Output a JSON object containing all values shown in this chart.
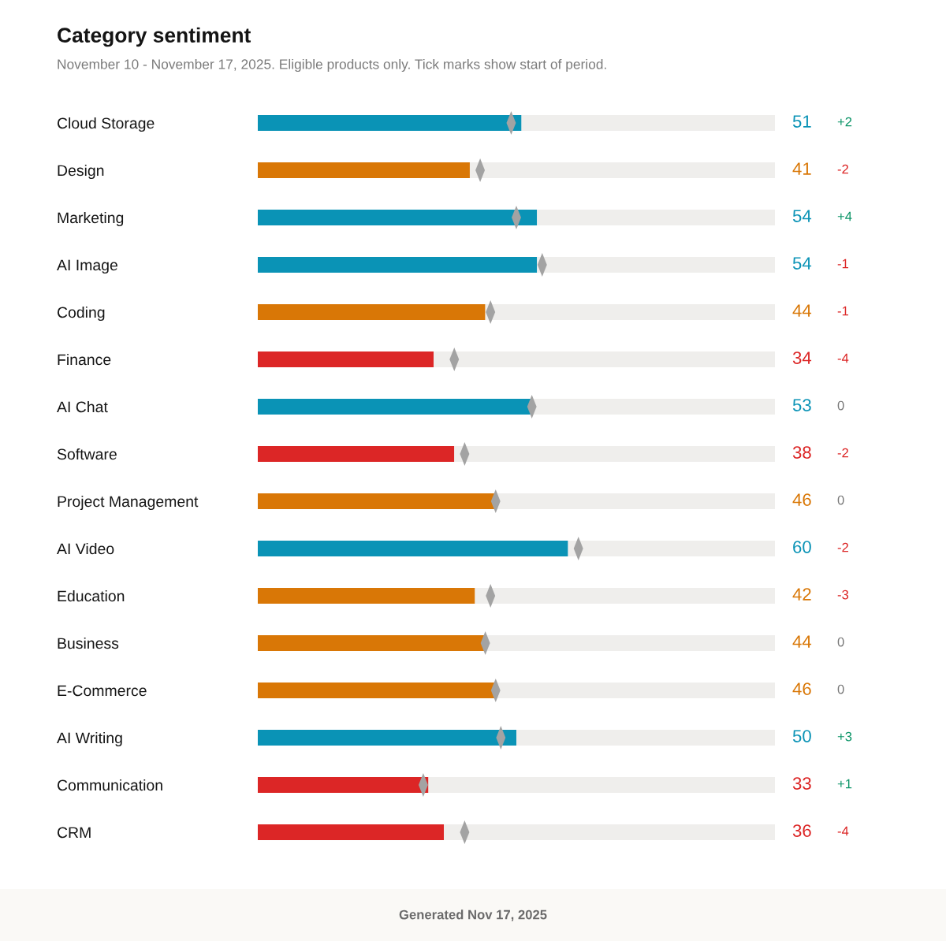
{
  "chart_data": {
    "type": "bar",
    "orientation": "horizontal",
    "stacked": true,
    "title": "Category sentiment",
    "subtitle": "November 10 - November 17, 2025. Eligible products only. Tick marks show start of period.",
    "categories": [
      "Cloud Storage",
      "Design",
      "Marketing",
      "AI Image",
      "Coding",
      "Finance",
      "AI Chat",
      "Software",
      "Project Management",
      "AI Video",
      "Education",
      "Business",
      "E-Commerce",
      "AI Writing",
      "Communication",
      "CRM"
    ],
    "xlim": [
      0,
      100
    ],
    "tick_labels": "y",
    "series": [
      {
        "values": [
          51,
          41,
          54,
          54,
          44,
          34,
          53,
          38,
          46,
          60,
          42,
          44,
          46,
          50,
          33,
          36
        ],
        "colors": [
          "#0a93b6",
          "#d97706",
          "#0a93b6",
          "#0a93b6",
          "#d97706",
          "#dc2626",
          "#0a93b6",
          "#dc2626",
          "#d97706",
          "#0a93b6",
          "#d97706",
          "#d97706",
          "#d97706",
          "#0a93b6",
          "#dc2626",
          "#dc2626"
        ],
        "value_labels": [
          "51",
          "41",
          "54",
          "54",
          "44",
          "34",
          "53",
          "38",
          "46",
          "60",
          "42",
          "44",
          "46",
          "50",
          "33",
          "36"
        ]
      },
      {
        "color": "#efeeec",
        "values": [
          49,
          59,
          46,
          46,
          56,
          66,
          47,
          62,
          54,
          40,
          58,
          56,
          54,
          50,
          67,
          64
        ]
      },
      {
        "type": "scatter",
        "color": "#a3a3a3",
        "marker": "diamond",
        "values": [
          49,
          43,
          50,
          55,
          45,
          38,
          53,
          40,
          46,
          62,
          45,
          44,
          46,
          47,
          32,
          40
        ]
      }
    ],
    "annotations": [
      "+2",
      "-2",
      "+4",
      "-1",
      "-1",
      "-4",
      "0",
      "-2",
      "0",
      "-2",
      "-3",
      "0",
      "0",
      "+3",
      "+1",
      "-4",
      "Generated Nov 17, 2025"
    ]
  }
}
